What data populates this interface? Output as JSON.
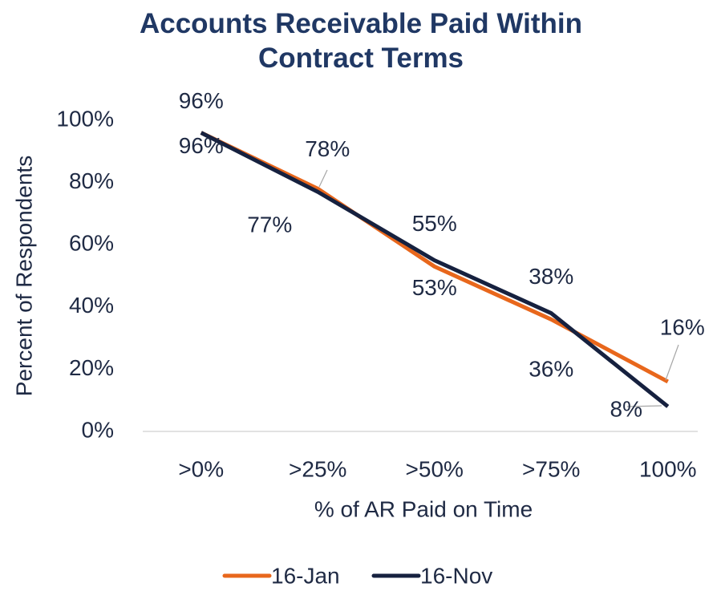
{
  "chart_data": {
    "type": "line",
    "title": "Accounts Receivable Paid Within Contract Terms",
    "x_label": "% of AR Paid on Time",
    "y_label": "Percent of Respondents",
    "categories": [
      ">0%",
      ">25%",
      ">50%",
      ">75%",
      "100%"
    ],
    "series": [
      {
        "name": "16-Jan",
        "color": "#e8671c",
        "values": [
          96,
          78,
          53,
          36,
          16
        ],
        "value_labels": [
          "96%",
          "78%",
          "53%",
          "36%",
          "16%"
        ]
      },
      {
        "name": "16-Nov",
        "color": "#16213f",
        "values": [
          96,
          77,
          55,
          38,
          8
        ],
        "value_labels": [
          "96%",
          "77%",
          "55%",
          "38%",
          "8%"
        ]
      }
    ],
    "ylim": [
      0,
      100
    ],
    "yticks": [
      {
        "value": 0,
        "label": "0%"
      },
      {
        "value": 20,
        "label": "20%"
      },
      {
        "value": 40,
        "label": "40%"
      },
      {
        "value": 60,
        "label": "60%"
      },
      {
        "value": 80,
        "label": "80%"
      },
      {
        "value": 100,
        "label": "100%"
      }
    ],
    "legend": "bottom"
  }
}
